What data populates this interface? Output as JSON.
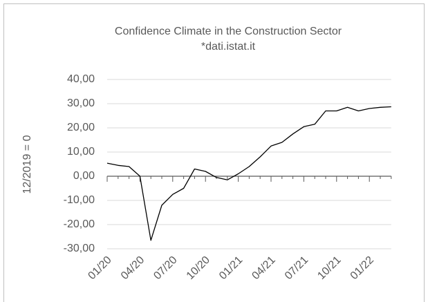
{
  "chart_data": {
    "type": "line",
    "title": "Confidence Climate in the Construction Sector",
    "subtitle": "*dati.istat.it",
    "y_label": "12/2019 = 0",
    "categories": [
      "01/20",
      null,
      null,
      "04/20",
      null,
      null,
      "07/20",
      null,
      null,
      "10/20",
      null,
      null,
      "01/21",
      null,
      null,
      "04/21",
      null,
      null,
      "07/21",
      null,
      null,
      "10/21",
      null,
      null,
      "01/22",
      null,
      null
    ],
    "series": [
      {
        "name": "Confidence Climate",
        "color": "#000000",
        "values": [
          5.4,
          4.5,
          4,
          0,
          -26.5,
          -12,
          -7.5,
          -5,
          3,
          2,
          -0.5,
          -1.5,
          1,
          4,
          8,
          12.5,
          14,
          17.5,
          20.5,
          21.5,
          27,
          27,
          28.5,
          27,
          28,
          28.5,
          28.7
        ]
      }
    ],
    "ylim": [
      -30,
      40
    ],
    "yticks": [
      {
        "value": 40,
        "label": "40,00"
      },
      {
        "value": 30,
        "label": "30,00"
      },
      {
        "value": 20,
        "label": "20,00"
      },
      {
        "value": 10,
        "label": "10,00"
      },
      {
        "value": 0,
        "label": "0,00"
      },
      {
        "value": -10,
        "label": "-10,00"
      },
      {
        "value": -20,
        "label": "-20,00"
      },
      {
        "value": -30,
        "label": "-30,00"
      }
    ],
    "grid": true
  }
}
